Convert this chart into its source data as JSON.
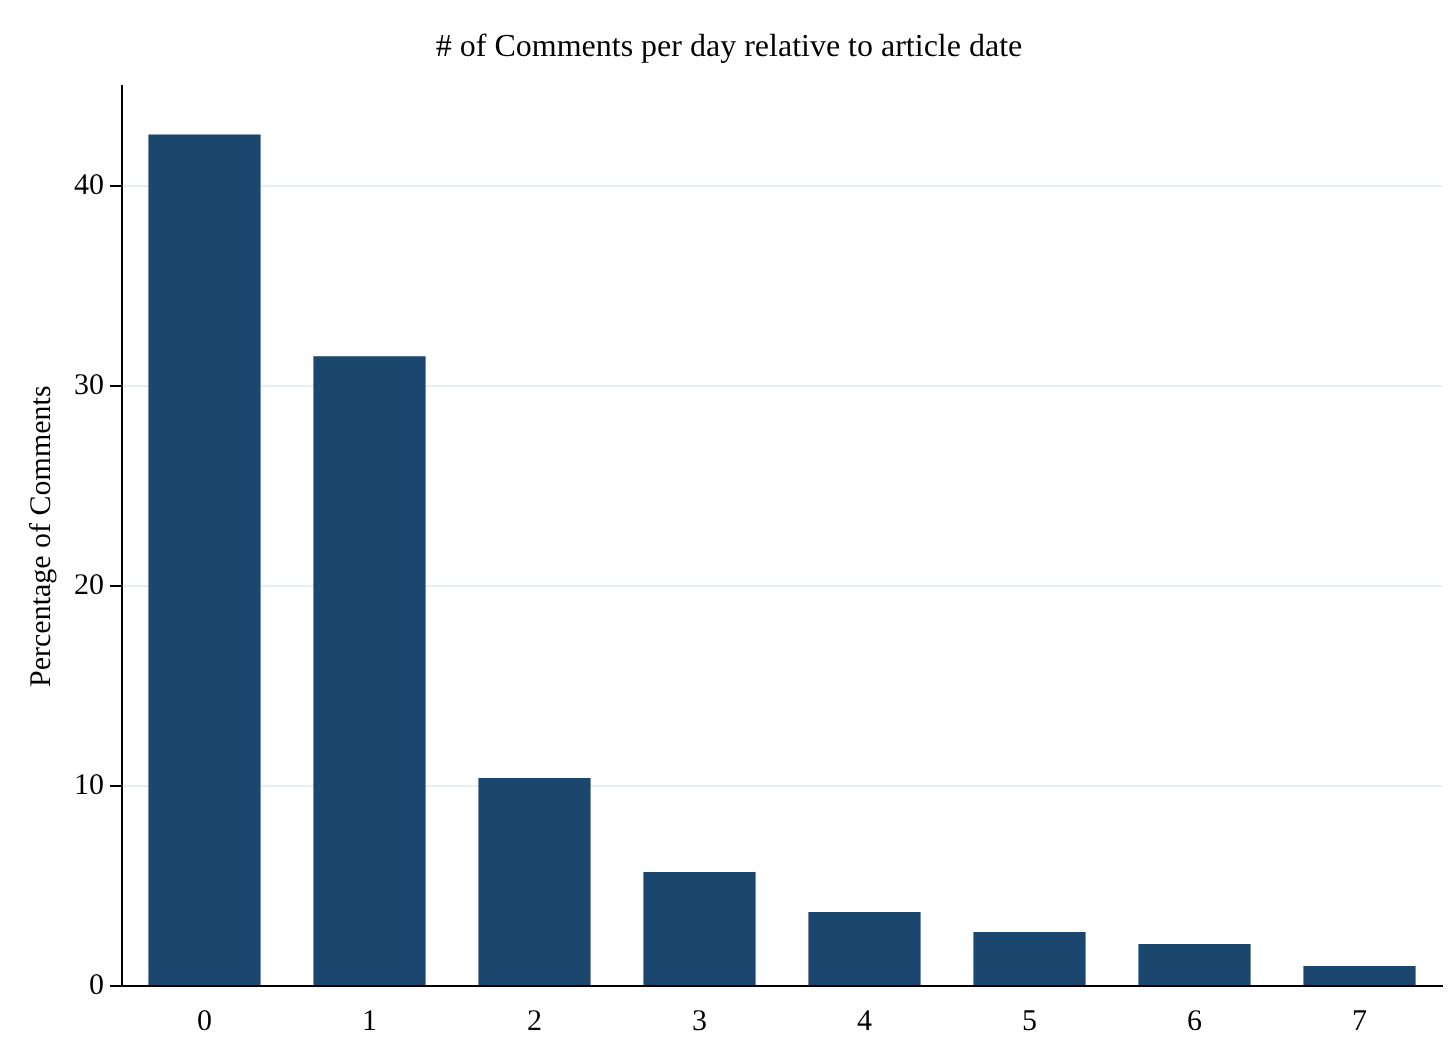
{
  "chart_data": {
    "type": "bar",
    "title": "# of Comments per day relative to article date",
    "ylabel": "Percentage of Comments",
    "categories": [
      "0",
      "1",
      "2",
      "3",
      "4",
      "5",
      "6",
      "7"
    ],
    "values": [
      42.6,
      31.5,
      10.4,
      5.7,
      3.7,
      2.7,
      2.1,
      1.0
    ],
    "color": "#1b466e",
    "ylim": [
      0,
      45
    ],
    "yticks": [
      0,
      10,
      20,
      30,
      40
    ],
    "grid": "y",
    "legend": false
  }
}
